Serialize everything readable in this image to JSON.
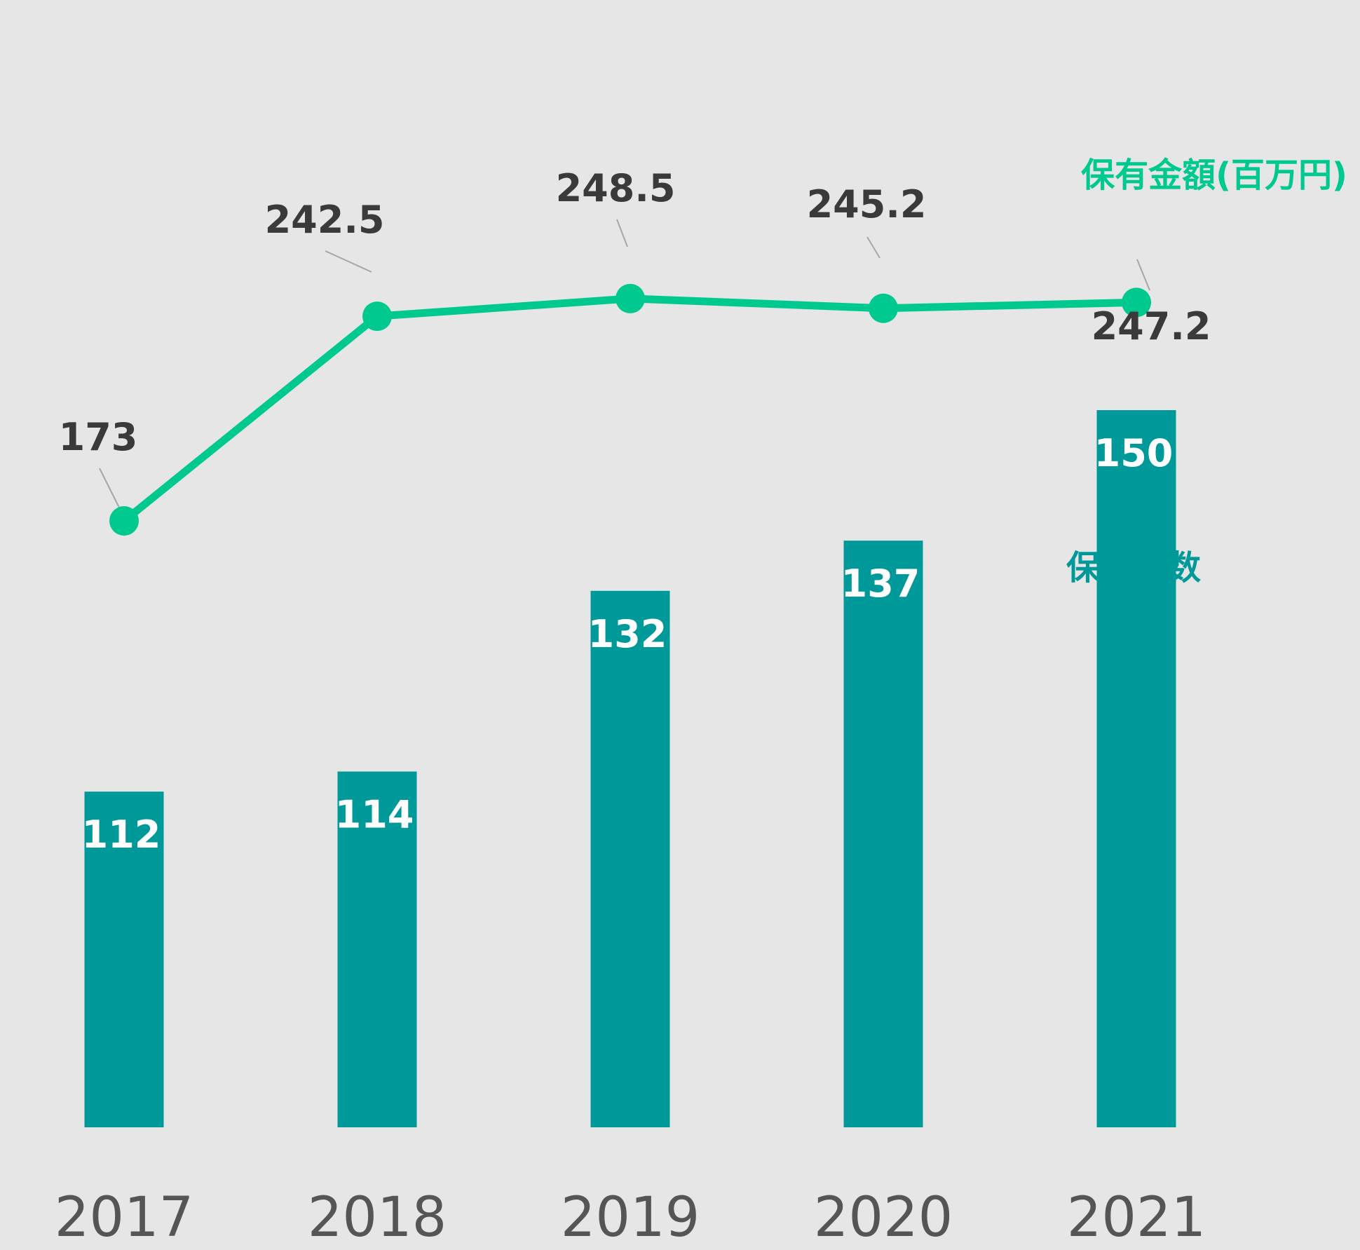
{
  "chart_data": {
    "type": "bar+line",
    "categories": [
      "2017",
      "2018",
      "2019",
      "2020",
      "2021"
    ],
    "series": [
      {
        "name": "保有件数",
        "type": "bar",
        "values": [
          112,
          114,
          132,
          137,
          150
        ],
        "labels": [
          "112",
          "114",
          "132",
          "137",
          "150"
        ],
        "color": "#00999a"
      },
      {
        "name": "保有金額(百万円)",
        "type": "line",
        "values": [
          173,
          242.5,
          248.5,
          245.2,
          247.2
        ],
        "labels": [
          "173",
          "242.5",
          "248.5",
          "245.2",
          "247.2"
        ],
        "color": "#00c98f"
      }
    ],
    "grid": false,
    "legend": "inline"
  }
}
